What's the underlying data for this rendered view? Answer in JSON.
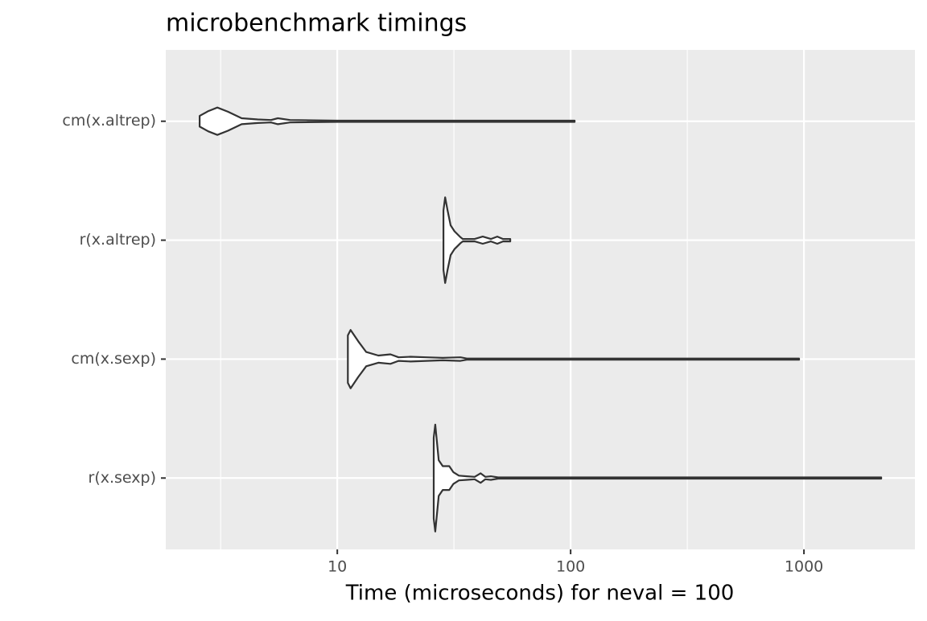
{
  "chart_data": {
    "type": "violin",
    "title": "microbenchmark timings",
    "x_label": "Time (microseconds) for neval = 100",
    "log_x": true,
    "grid": true,
    "xlim": [
      1.84,
      2990
    ],
    "xticks": [
      10,
      100,
      1000
    ],
    "minor_xticks": [
      3.162,
      31.62,
      316.2
    ],
    "fill": "#ffffff",
    "color": "#333333",
    "series": [
      {
        "name": "cm(x.altrep)",
        "x": [
          2.57,
          2.8,
          3.06,
          3.4,
          3.89,
          4.56,
          5.2,
          5.56,
          6.27,
          10,
          104
        ],
        "density": [
          0.09,
          0.17,
          0.23,
          0.16,
          0.05,
          0.03,
          0.02,
          0.05,
          0.02,
          0.01,
          0.01
        ]
      },
      {
        "name": "r(x.altrep)",
        "x": [
          28.5,
          29.0,
          29.7,
          30.6,
          31.8,
          33.7,
          34.5,
          38.8,
          42.0,
          45.5,
          48.5,
          51.3,
          55.1
        ],
        "density": [
          0.5,
          0.72,
          0.5,
          0.25,
          0.15,
          0.05,
          0.02,
          0.02,
          0.06,
          0.02,
          0.06,
          0.02,
          0.02
        ]
      },
      {
        "name": "cm(x.sexp)",
        "x": [
          11.1,
          11.4,
          12.3,
          13.3,
          15.0,
          16.9,
          18.3,
          20.6,
          24.1,
          28.3,
          33.7,
          35.9,
          953
        ],
        "density": [
          0.4,
          0.49,
          0.3,
          0.12,
          0.06,
          0.08,
          0.03,
          0.04,
          0.03,
          0.02,
          0.03,
          0.01,
          0.01
        ]
      },
      {
        "name": "r(x.sexp)",
        "x": [
          25.9,
          26.3,
          27.2,
          28.3,
          30.2,
          31.4,
          33.2,
          35.9,
          38.8,
          41.1,
          43.1,
          45.5,
          48.9,
          2143
        ],
        "density": [
          0.68,
          0.9,
          0.3,
          0.2,
          0.2,
          0.1,
          0.04,
          0.03,
          0.02,
          0.08,
          0.02,
          0.03,
          0.01,
          0.01
        ]
      }
    ]
  }
}
